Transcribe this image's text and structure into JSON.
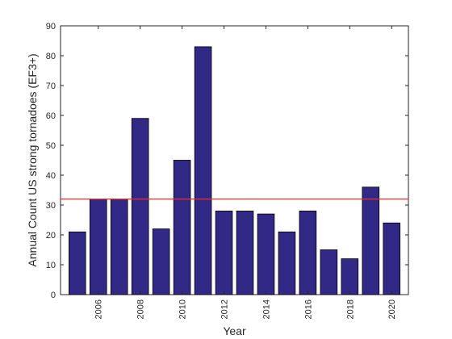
{
  "chart_data": {
    "type": "bar",
    "xlabel": "Year",
    "ylabel": "Annual Count US strong tornadoes (EF3+)",
    "x": [
      2005,
      2006,
      2007,
      2008,
      2009,
      2010,
      2011,
      2012,
      2013,
      2014,
      2015,
      2016,
      2017,
      2018,
      2019,
      2020
    ],
    "values": [
      21,
      32,
      32,
      59,
      22,
      45,
      83,
      28,
      28,
      27,
      21,
      28,
      15,
      12,
      36,
      24
    ],
    "xlim": [
      2004.2,
      2020.8
    ],
    "ylim": [
      0,
      90
    ],
    "x_ticks": [
      2006,
      2008,
      2010,
      2012,
      2014,
      2016,
      2018,
      2020
    ],
    "y_ticks": [
      0,
      10,
      20,
      30,
      40,
      50,
      60,
      70,
      80,
      90
    ],
    "reference_line": {
      "y": 32,
      "color": "#e8302b"
    },
    "bar_color": "#322886",
    "grid": true
  }
}
